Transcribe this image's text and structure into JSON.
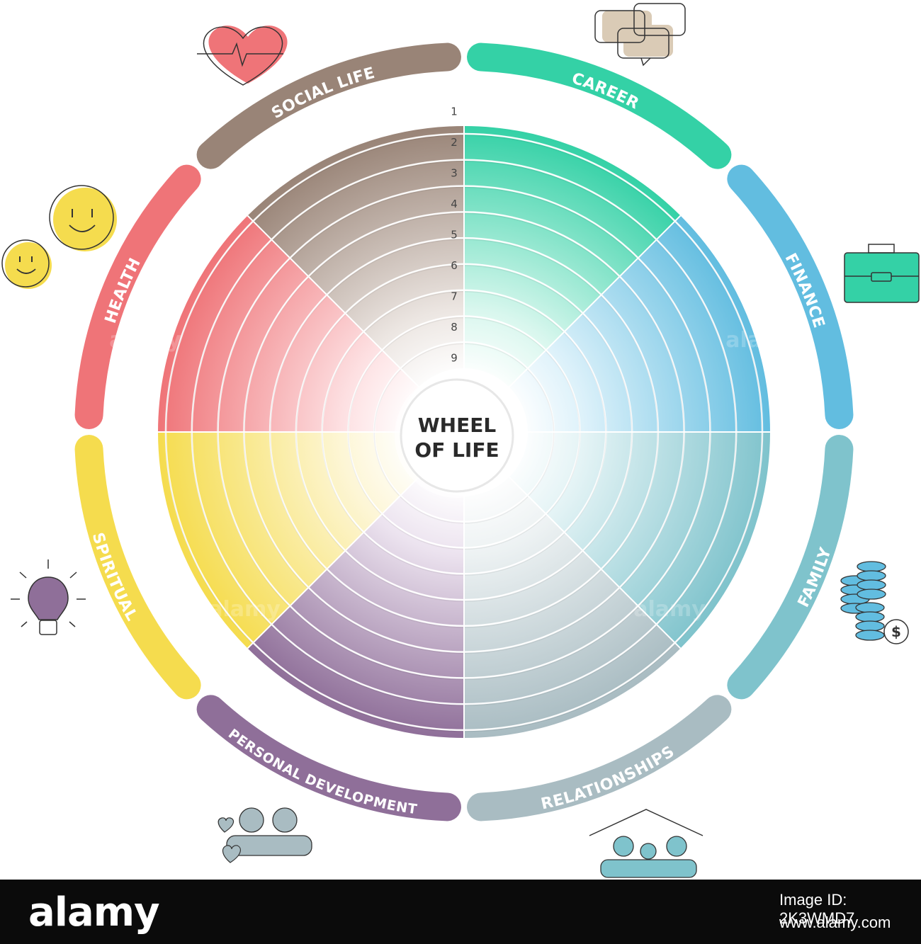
{
  "title_line1": "WHEEL",
  "title_line2": "OF LIFE",
  "ring_numbers": [
    "1",
    "2",
    "3",
    "4",
    "5",
    "6",
    "7",
    "8",
    "9"
  ],
  "segments": [
    {
      "label": "HEALTH",
      "color": "#ef7478",
      "light": "#fde0e2",
      "icon": "heart-icon"
    },
    {
      "label": "SOCIAL LIFE",
      "color": "#998477",
      "light": "#ece6e2",
      "icon": "chat-bubbles-icon"
    },
    {
      "label": "CAREER",
      "color": "#34d1a6",
      "light": "#d9f7ee",
      "icon": "briefcase-icon"
    },
    {
      "label": "FINANCE",
      "color": "#62bde0",
      "light": "#dcf1fa",
      "icon": "coins-icon"
    },
    {
      "label": "FAMILY",
      "color": "#7fc3cc",
      "light": "#e3f3f5",
      "icon": "family-house-icon"
    },
    {
      "label": "RELATIONSHIPS",
      "color": "#a9bcc2",
      "light": "#edf2f3",
      "icon": "couple-icon"
    },
    {
      "label": "PERSONAL DEVELOPMENT",
      "color": "#8f6f99",
      "light": "#ece3ef",
      "icon": "lightbulb-icon"
    },
    {
      "label": "SPIRITUAL",
      "color": "#f5dc4e",
      "light": "#fdf6d6",
      "icon": "smiley-faces-icon"
    }
  ],
  "watermark_text": "alamy",
  "footer": {
    "logo": "alamy",
    "image_id": "Image ID: 2K3WMD7",
    "url": "www.alamy.com"
  }
}
